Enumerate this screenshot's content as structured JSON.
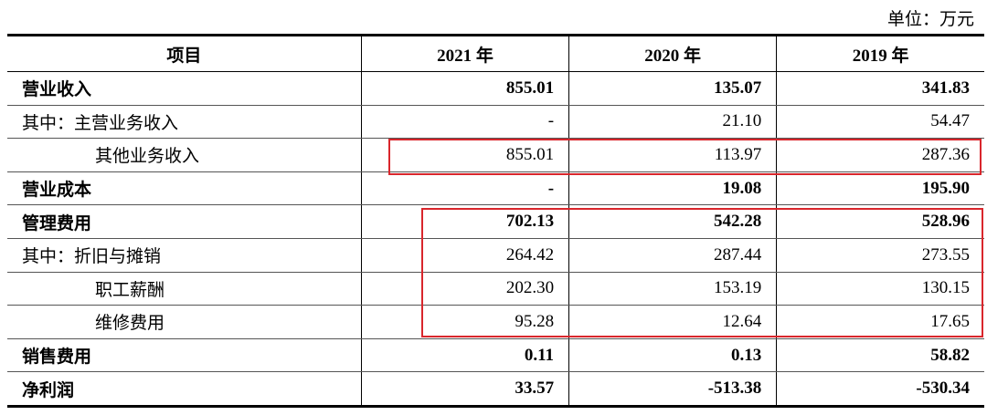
{
  "unit": "单位：万元",
  "table": {
    "header": [
      "项目",
      "2021 年",
      "2020 年",
      "2019 年"
    ],
    "rows": [
      [
        "营业收入",
        "855.01",
        "135.07",
        "341.83"
      ],
      [
        "其中：主营业务收入",
        "-",
        "21.10",
        "54.47"
      ],
      [
        "其他业务收入",
        "855.01",
        "113.97",
        "287.36"
      ],
      [
        "营业成本",
        "-",
        "19.08",
        "195.90"
      ],
      [
        "管理费用",
        "702.13",
        "542.28",
        "528.96"
      ],
      [
        "其中：折旧与摊销",
        "264.42",
        "287.44",
        "273.55"
      ],
      [
        "职工薪酬",
        "202.30",
        "153.19",
        "130.15"
      ],
      [
        "维修费用",
        "95.28",
        "12.64",
        "17.65"
      ],
      [
        "销售费用",
        "0.11",
        "0.13",
        "58.82"
      ],
      [
        "净利润",
        "33.57",
        "-513.38",
        "-530.34"
      ]
    ]
  }
}
